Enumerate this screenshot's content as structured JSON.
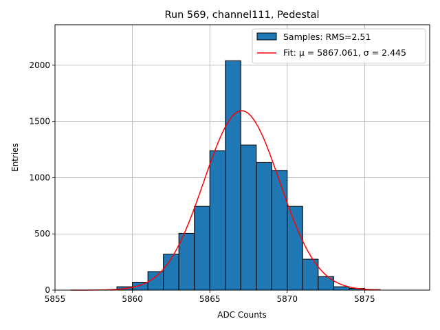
{
  "chart_data": {
    "type": "bar",
    "title": "Run 569, channel111, Pedestal",
    "xlabel": "ADC Counts",
    "ylabel": "Entries",
    "xlim": [
      5855,
      5879.2
    ],
    "ylim": [
      0,
      2360
    ],
    "x_ticks": [
      5855,
      5860,
      5865,
      5870,
      5875
    ],
    "y_ticks": [
      0,
      500,
      1000,
      1500,
      2000
    ],
    "grid": true,
    "legend_position": "top-right",
    "histogram": {
      "name": "Samples: RMS=2.51",
      "color": "#1f77b4",
      "edgecolor": "#000000",
      "bins": [
        {
          "left": 5859.0,
          "right": 5860.0,
          "count": 30
        },
        {
          "left": 5860.0,
          "right": 5861.0,
          "count": 70
        },
        {
          "left": 5861.0,
          "right": 5862.0,
          "count": 165
        },
        {
          "left": 5862.0,
          "right": 5863.0,
          "count": 320
        },
        {
          "left": 5863.0,
          "right": 5864.0,
          "count": 505
        },
        {
          "left": 5864.0,
          "right": 5865.0,
          "count": 745
        },
        {
          "left": 5865.0,
          "right": 5866.0,
          "count": 1240
        },
        {
          "left": 5866.0,
          "right": 5867.0,
          "count": 2040
        },
        {
          "left": 5867.0,
          "right": 5868.0,
          "count": 1290
        },
        {
          "left": 5868.0,
          "right": 5869.0,
          "count": 1135
        },
        {
          "left": 5869.0,
          "right": 5870.0,
          "count": 1065
        },
        {
          "left": 5870.0,
          "right": 5871.0,
          "count": 745
        },
        {
          "left": 5871.0,
          "right": 5872.0,
          "count": 275
        },
        {
          "left": 5872.0,
          "right": 5873.0,
          "count": 120
        },
        {
          "left": 5873.0,
          "right": 5874.0,
          "count": 30
        },
        {
          "left": 5874.0,
          "right": 5875.0,
          "count": 15
        },
        {
          "left": 5875.0,
          "right": 5876.0,
          "count": 5
        }
      ]
    },
    "fit": {
      "name": "Fit: μ = 5867.061, σ = 2.445",
      "color": "#ff0000",
      "mu": 5867.061,
      "sigma": 2.445,
      "amplitude": 1595,
      "x_range": [
        5856,
        5876
      ]
    }
  }
}
